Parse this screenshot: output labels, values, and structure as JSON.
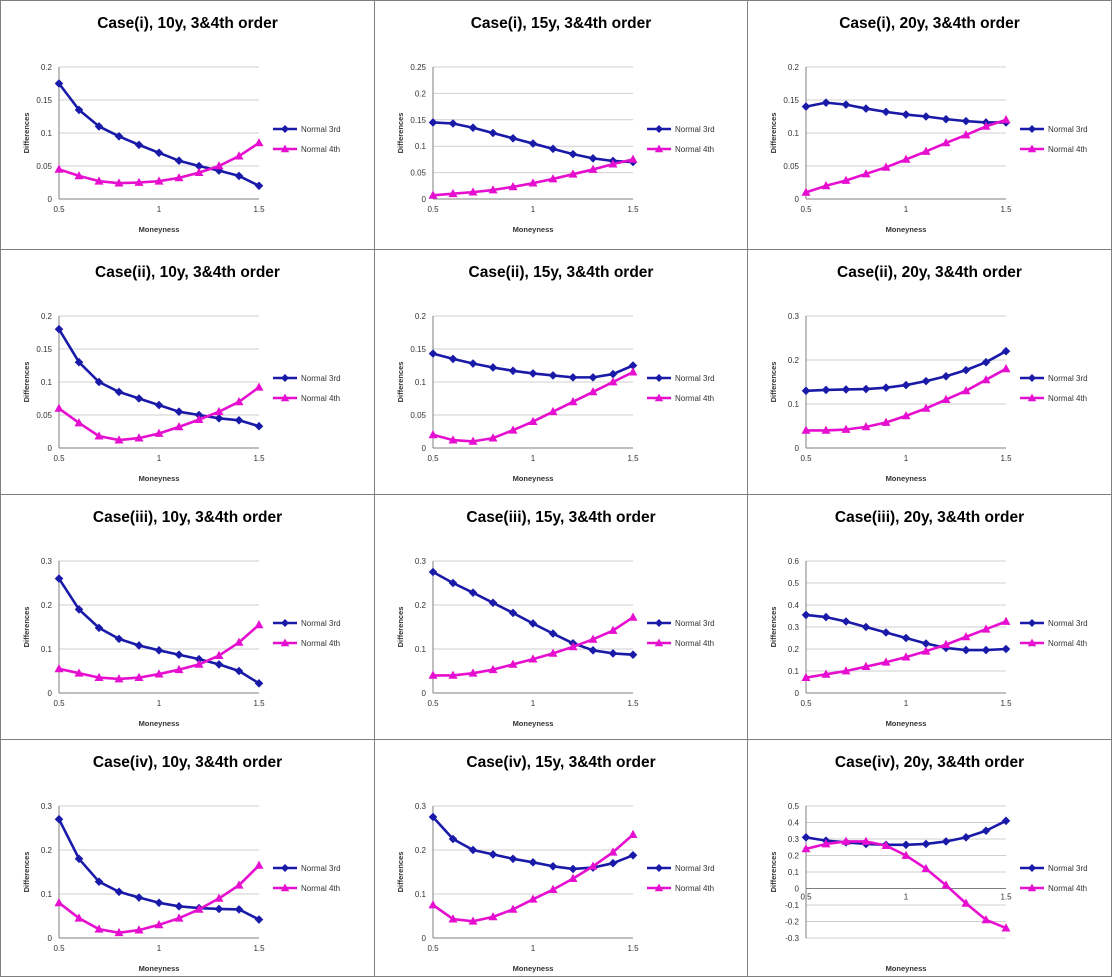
{
  "chart_data": [
    {
      "type": "line",
      "title": "Case(i), 10y, 3&4th order",
      "xlabel": "Moneyness",
      "ylabel": "Differences",
      "xlim": [
        0.5,
        1.5
      ],
      "ylim": [
        0,
        0.2
      ],
      "yticks": [
        "0",
        "0.05",
        "0.1",
        "0.15",
        "0.2"
      ],
      "xticks": [
        "0.5",
        "1",
        "1.5"
      ],
      "x": [
        0.5,
        0.6,
        0.7,
        0.8,
        0.9,
        1.0,
        1.1,
        1.2,
        1.3,
        1.4,
        1.5
      ],
      "series": [
        {
          "name": "Normal 3rd",
          "color": "#1a1aa8",
          "marker": "diamond",
          "values": [
            0.175,
            0.135,
            0.11,
            0.095,
            0.082,
            0.07,
            0.058,
            0.05,
            0.043,
            0.035,
            0.02
          ]
        },
        {
          "name": "Normal 4th",
          "color": "#e60fd0",
          "marker": "triangle",
          "values": [
            0.045,
            0.035,
            0.027,
            0.024,
            0.025,
            0.027,
            0.032,
            0.04,
            0.05,
            0.065,
            0.085
          ]
        }
      ]
    },
    {
      "type": "line",
      "title": "Case(i), 15y, 3&4th order",
      "xlabel": "Moneyness",
      "ylabel": "Differences",
      "xlim": [
        0.5,
        1.5
      ],
      "ylim": [
        0,
        0.25
      ],
      "yticks": [
        "0",
        "0.05",
        "0.1",
        "0.15",
        "0.2",
        "0.25"
      ],
      "xticks": [
        "0.5",
        "1",
        "1.5"
      ],
      "x": [
        0.5,
        0.6,
        0.7,
        0.8,
        0.9,
        1.0,
        1.1,
        1.2,
        1.3,
        1.4,
        1.5
      ],
      "series": [
        {
          "name": "Normal 3rd",
          "color": "#1a1aa8",
          "marker": "diamond",
          "values": [
            0.145,
            0.143,
            0.135,
            0.125,
            0.115,
            0.105,
            0.095,
            0.085,
            0.077,
            0.072,
            0.07
          ]
        },
        {
          "name": "Normal 4th",
          "color": "#e60fd0",
          "marker": "triangle",
          "values": [
            0.007,
            0.01,
            0.013,
            0.017,
            0.023,
            0.03,
            0.038,
            0.047,
            0.056,
            0.066,
            0.075
          ]
        }
      ]
    },
    {
      "type": "line",
      "title": "Case(i), 20y, 3&4th order",
      "xlabel": "Moneyness",
      "ylabel": "Differences",
      "xlim": [
        0.5,
        1.5
      ],
      "ylim": [
        0,
        0.2
      ],
      "yticks": [
        "0",
        "0.05",
        "0.1",
        "0.15",
        "0.2"
      ],
      "xticks": [
        "0.5",
        "1",
        "1.5"
      ],
      "x": [
        0.5,
        0.6,
        0.7,
        0.8,
        0.9,
        1.0,
        1.1,
        1.2,
        1.3,
        1.4,
        1.5
      ],
      "series": [
        {
          "name": "Normal 3rd",
          "color": "#1a1aa8",
          "marker": "diamond",
          "values": [
            0.14,
            0.146,
            0.143,
            0.137,
            0.132,
            0.128,
            0.125,
            0.121,
            0.118,
            0.116,
            0.116
          ]
        },
        {
          "name": "Normal 4th",
          "color": "#e60fd0",
          "marker": "triangle",
          "values": [
            0.01,
            0.02,
            0.028,
            0.038,
            0.048,
            0.06,
            0.072,
            0.085,
            0.097,
            0.11,
            0.12
          ]
        }
      ]
    },
    {
      "type": "line",
      "title": "Case(ii), 10y, 3&4th order",
      "xlabel": "Moneyness",
      "ylabel": "Differences",
      "xlim": [
        0.5,
        1.5
      ],
      "ylim": [
        0,
        0.2
      ],
      "yticks": [
        "0",
        "0.05",
        "0.1",
        "0.15",
        "0.2"
      ],
      "xticks": [
        "0.5",
        "1",
        "1.5"
      ],
      "x": [
        0.5,
        0.6,
        0.7,
        0.8,
        0.9,
        1.0,
        1.1,
        1.2,
        1.3,
        1.4,
        1.5
      ],
      "series": [
        {
          "name": "Normal 3rd",
          "color": "#1a1aa8",
          "marker": "diamond",
          "values": [
            0.18,
            0.13,
            0.1,
            0.085,
            0.075,
            0.065,
            0.055,
            0.05,
            0.045,
            0.042,
            0.033
          ]
        },
        {
          "name": "Normal 4th",
          "color": "#e60fd0",
          "marker": "triangle",
          "values": [
            0.06,
            0.038,
            0.018,
            0.012,
            0.015,
            0.022,
            0.032,
            0.043,
            0.055,
            0.07,
            0.092
          ]
        }
      ]
    },
    {
      "type": "line",
      "title": "Case(ii), 15y, 3&4th order",
      "xlabel": "Moneyness",
      "ylabel": "Differences",
      "xlim": [
        0.5,
        1.5
      ],
      "ylim": [
        0,
        0.2
      ],
      "yticks": [
        "0",
        "0.05",
        "0.1",
        "0.15",
        "0.2"
      ],
      "xticks": [
        "0.5",
        "1",
        "1.5"
      ],
      "x": [
        0.5,
        0.6,
        0.7,
        0.8,
        0.9,
        1.0,
        1.1,
        1.2,
        1.3,
        1.4,
        1.5
      ],
      "series": [
        {
          "name": "Normal 3rd",
          "color": "#1a1aa8",
          "marker": "diamond",
          "values": [
            0.143,
            0.135,
            0.128,
            0.122,
            0.117,
            0.113,
            0.11,
            0.107,
            0.107,
            0.112,
            0.125
          ]
        },
        {
          "name": "Normal 4th",
          "color": "#e60fd0",
          "marker": "triangle",
          "values": [
            0.02,
            0.012,
            0.01,
            0.015,
            0.027,
            0.04,
            0.055,
            0.07,
            0.085,
            0.1,
            0.115
          ]
        }
      ]
    },
    {
      "type": "line",
      "title": "Case(ii), 20y, 3&4th order",
      "xlabel": "Moneyness",
      "ylabel": "Differences",
      "xlim": [
        0.5,
        1.5
      ],
      "ylim": [
        0,
        0.3
      ],
      "yticks": [
        "0",
        "0.1",
        "0.2",
        "0.3"
      ],
      "xticks": [
        "0.5",
        "1",
        "1.5"
      ],
      "x": [
        0.5,
        0.6,
        0.7,
        0.8,
        0.9,
        1.0,
        1.1,
        1.2,
        1.3,
        1.4,
        1.5
      ],
      "series": [
        {
          "name": "Normal 3rd",
          "color": "#1a1aa8",
          "marker": "diamond",
          "values": [
            0.13,
            0.132,
            0.133,
            0.134,
            0.137,
            0.143,
            0.152,
            0.163,
            0.177,
            0.195,
            0.22
          ]
        },
        {
          "name": "Normal 4th",
          "color": "#e60fd0",
          "marker": "triangle",
          "values": [
            0.04,
            0.04,
            0.042,
            0.048,
            0.058,
            0.073,
            0.09,
            0.11,
            0.13,
            0.155,
            0.18
          ]
        }
      ]
    },
    {
      "type": "line",
      "title": "Case(iii), 10y, 3&4th order",
      "xlabel": "Moneyness",
      "ylabel": "Differences",
      "xlim": [
        0.5,
        1.5
      ],
      "ylim": [
        0,
        0.3
      ],
      "yticks": [
        "0",
        "0.1",
        "0.2",
        "0.3"
      ],
      "xticks": [
        "0.5",
        "1",
        "1.5"
      ],
      "x": [
        0.5,
        0.6,
        0.7,
        0.8,
        0.9,
        1.0,
        1.1,
        1.2,
        1.3,
        1.4,
        1.5
      ],
      "series": [
        {
          "name": "Normal 3rd",
          "color": "#1a1aa8",
          "marker": "diamond",
          "values": [
            0.26,
            0.19,
            0.148,
            0.123,
            0.108,
            0.097,
            0.087,
            0.077,
            0.065,
            0.05,
            0.022
          ]
        },
        {
          "name": "Normal 4th",
          "color": "#e60fd0",
          "marker": "triangle",
          "values": [
            0.055,
            0.045,
            0.035,
            0.032,
            0.035,
            0.043,
            0.053,
            0.065,
            0.085,
            0.115,
            0.155
          ]
        }
      ]
    },
    {
      "type": "line",
      "title": "Case(iii), 15y, 3&4th order",
      "xlabel": "Moneyness",
      "ylabel": "Differences",
      "xlim": [
        0.5,
        1.5
      ],
      "ylim": [
        0,
        0.3
      ],
      "yticks": [
        "0",
        "0.1",
        "0.2",
        "0.3"
      ],
      "xticks": [
        "0.5",
        "1",
        "1.5"
      ],
      "x": [
        0.5,
        0.6,
        0.7,
        0.8,
        0.9,
        1.0,
        1.1,
        1.2,
        1.3,
        1.4,
        1.5
      ],
      "series": [
        {
          "name": "Normal 3rd",
          "color": "#1a1aa8",
          "marker": "diamond",
          "values": [
            0.275,
            0.25,
            0.228,
            0.205,
            0.182,
            0.158,
            0.135,
            0.113,
            0.097,
            0.09,
            0.087
          ]
        },
        {
          "name": "Normal 4th",
          "color": "#e60fd0",
          "marker": "triangle",
          "values": [
            0.04,
            0.04,
            0.045,
            0.053,
            0.065,
            0.077,
            0.09,
            0.105,
            0.122,
            0.142,
            0.172
          ]
        }
      ]
    },
    {
      "type": "line",
      "title": "Case(iii), 20y, 3&4th order",
      "xlabel": "Moneyness",
      "ylabel": "Differences",
      "xlim": [
        0.5,
        1.5
      ],
      "ylim": [
        0,
        0.6
      ],
      "yticks": [
        "0",
        "0.1",
        "0.2",
        "0.3",
        "0.4",
        "0.5",
        "0.6"
      ],
      "xticks": [
        "0.5",
        "1",
        "1.5"
      ],
      "x": [
        0.5,
        0.6,
        0.7,
        0.8,
        0.9,
        1.0,
        1.1,
        1.2,
        1.3,
        1.4,
        1.5
      ],
      "series": [
        {
          "name": "Normal 3rd",
          "color": "#1a1aa8",
          "marker": "diamond",
          "values": [
            0.355,
            0.345,
            0.325,
            0.3,
            0.275,
            0.25,
            0.225,
            0.205,
            0.195,
            0.195,
            0.2
          ]
        },
        {
          "name": "Normal 4th",
          "color": "#e60fd0",
          "marker": "triangle",
          "values": [
            0.07,
            0.085,
            0.1,
            0.12,
            0.14,
            0.163,
            0.19,
            0.22,
            0.255,
            0.29,
            0.325
          ]
        }
      ]
    },
    {
      "type": "line",
      "title": "Case(iv), 10y, 3&4th order",
      "xlabel": "Moneyness",
      "ylabel": "Differences",
      "xlim": [
        0.5,
        1.5
      ],
      "ylim": [
        0,
        0.3
      ],
      "yticks": [
        "0",
        "0.1",
        "0.2",
        "0.3"
      ],
      "xticks": [
        "0.5",
        "1",
        "1.5"
      ],
      "x": [
        0.5,
        0.6,
        0.7,
        0.8,
        0.9,
        1.0,
        1.1,
        1.2,
        1.3,
        1.4,
        1.5
      ],
      "series": [
        {
          "name": "Normal 3rd",
          "color": "#1a1aa8",
          "marker": "diamond",
          "values": [
            0.27,
            0.18,
            0.128,
            0.105,
            0.092,
            0.08,
            0.072,
            0.068,
            0.066,
            0.065,
            0.042
          ]
        },
        {
          "name": "Normal 4th",
          "color": "#e60fd0",
          "marker": "triangle",
          "values": [
            0.08,
            0.045,
            0.02,
            0.012,
            0.018,
            0.03,
            0.045,
            0.065,
            0.09,
            0.12,
            0.165
          ]
        }
      ]
    },
    {
      "type": "line",
      "title": "Case(iv), 15y, 3&4th order",
      "xlabel": "Moneyness",
      "ylabel": "Differences",
      "xlim": [
        0.5,
        1.5
      ],
      "ylim": [
        0,
        0.3
      ],
      "yticks": [
        "0",
        "0.1",
        "0.2",
        "0.3"
      ],
      "xticks": [
        "0.5",
        "1",
        "1.5"
      ],
      "x": [
        0.5,
        0.6,
        0.7,
        0.8,
        0.9,
        1.0,
        1.1,
        1.2,
        1.3,
        1.4,
        1.5
      ],
      "series": [
        {
          "name": "Normal 3rd",
          "color": "#1a1aa8",
          "marker": "diamond",
          "values": [
            0.275,
            0.225,
            0.2,
            0.19,
            0.18,
            0.172,
            0.163,
            0.157,
            0.16,
            0.17,
            0.188
          ]
        },
        {
          "name": "Normal 4th",
          "color": "#e60fd0",
          "marker": "triangle",
          "values": [
            0.075,
            0.043,
            0.038,
            0.048,
            0.065,
            0.088,
            0.11,
            0.135,
            0.163,
            0.195,
            0.235
          ]
        }
      ]
    },
    {
      "type": "line",
      "title": "Case(iv), 20y, 3&4th order",
      "xlabel": "Moneyness",
      "ylabel": "Differences",
      "xlim": [
        0.5,
        1.5
      ],
      "ylim": [
        -0.3,
        0.5
      ],
      "yticks": [
        "-0.3",
        "-0.2",
        "-0.1",
        "0",
        "0.1",
        "0.2",
        "0.3",
        "0.4",
        "0.5"
      ],
      "xticks": [
        "0.5",
        "1",
        "1.5"
      ],
      "x": [
        0.5,
        0.6,
        0.7,
        0.8,
        0.9,
        1.0,
        1.1,
        1.2,
        1.3,
        1.4,
        1.5
      ],
      "series": [
        {
          "name": "Normal 3rd",
          "color": "#1a1aa8",
          "marker": "diamond",
          "values": [
            0.31,
            0.29,
            0.28,
            0.27,
            0.265,
            0.265,
            0.27,
            0.285,
            0.31,
            0.35,
            0.41
          ]
        },
        {
          "name": "Normal 4th",
          "color": "#e60fd0",
          "marker": "triangle",
          "values": [
            0.24,
            0.27,
            0.285,
            0.285,
            0.26,
            0.2,
            0.12,
            0.02,
            -0.09,
            -0.19,
            -0.24
          ]
        }
      ]
    }
  ]
}
